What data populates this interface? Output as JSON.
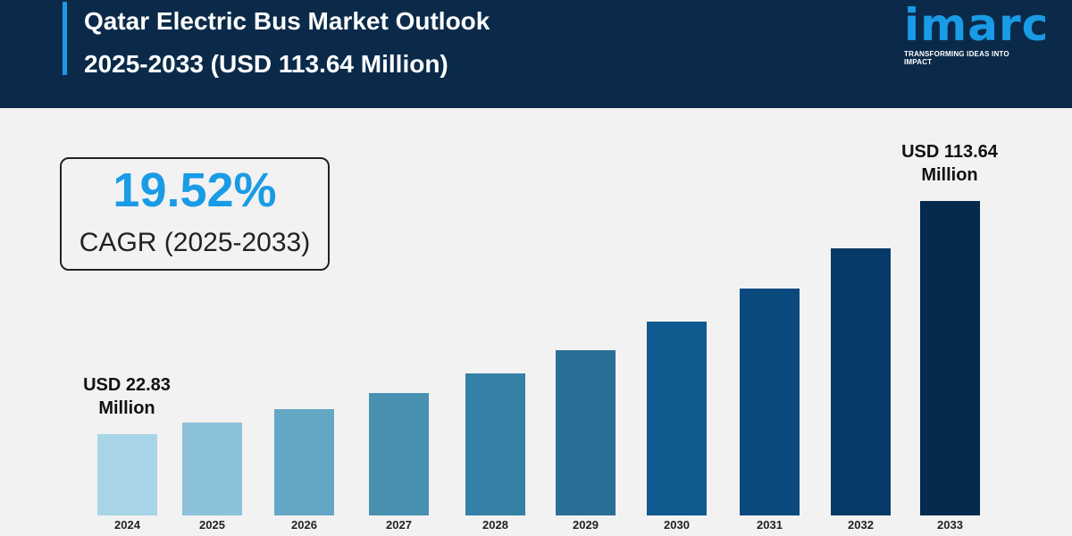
{
  "header": {
    "title_line1": "Qatar Electric Bus Market Outlook",
    "title_line2": "2025-2033 (USD 113.64 Million)",
    "logo_text": "imarc",
    "logo_tagline": "TRANSFORMING IDEAS INTO IMPACT"
  },
  "cagr": {
    "value": "19.52%",
    "label": "CAGR (2025-2033)"
  },
  "colors": {
    "header_bg": "#0b2a4a",
    "accent": "#1a9be6"
  },
  "chart_data": {
    "type": "bar",
    "title": "",
    "xlabel": "",
    "ylabel": "",
    "unit": "USD Million",
    "categories": [
      "2024",
      "2025",
      "2026",
      "2027",
      "2028",
      "2029",
      "2030",
      "2031",
      "2032",
      "2033"
    ],
    "values": [
      22.83,
      27.3,
      32.6,
      39.0,
      46.6,
      55.7,
      66.6,
      79.6,
      95.1,
      113.64
    ],
    "bar_colors": [
      "#a8d5e8",
      "#8cc1da",
      "#64a7c5",
      "#4891b1",
      "#3480a6",
      "#2a6f98",
      "#0f5a8e",
      "#0a4a7e",
      "#063a68",
      "#042a4e"
    ],
    "annotations": [
      {
        "category": "2024",
        "line1": "USD 22.83",
        "line2": "Million"
      },
      {
        "category": "2033",
        "line1": "USD 113.64",
        "line2": "Million"
      }
    ],
    "grid": false,
    "legend": "none"
  }
}
